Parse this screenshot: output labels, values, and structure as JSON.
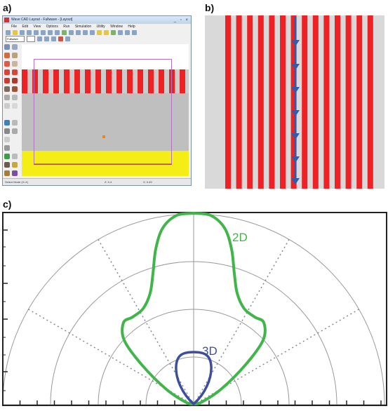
{
  "labels": {
    "a": "a)",
    "b": "b)",
    "c": "c)"
  },
  "window": {
    "title": "Wave CAD Layout - Fullwave - [Layout]",
    "menus": [
      "File",
      "Edit",
      "View",
      "Options",
      "Run",
      "Simulation",
      "Utility",
      "Window",
      "Help"
    ],
    "layer_combo": "Fullwave",
    "status_left": "Select Mode (X=1)",
    "status_mid": "Z: 0.4",
    "status_right": "X: 0.40"
  },
  "colors": {
    "stripe_red": "#ee2224",
    "stripe_gray": "#d9d9d9",
    "substrate_gray": "#bfbfbf",
    "bottom_layer_yellow": "#f4ee16",
    "arrow_blue": "#2f5cab",
    "curve_2d": "#40b549",
    "curve_3d": "#3d4e9e"
  },
  "polar_chart": {
    "curves": [
      {
        "name": "2D"
      },
      {
        "name": "3D"
      }
    ]
  }
}
